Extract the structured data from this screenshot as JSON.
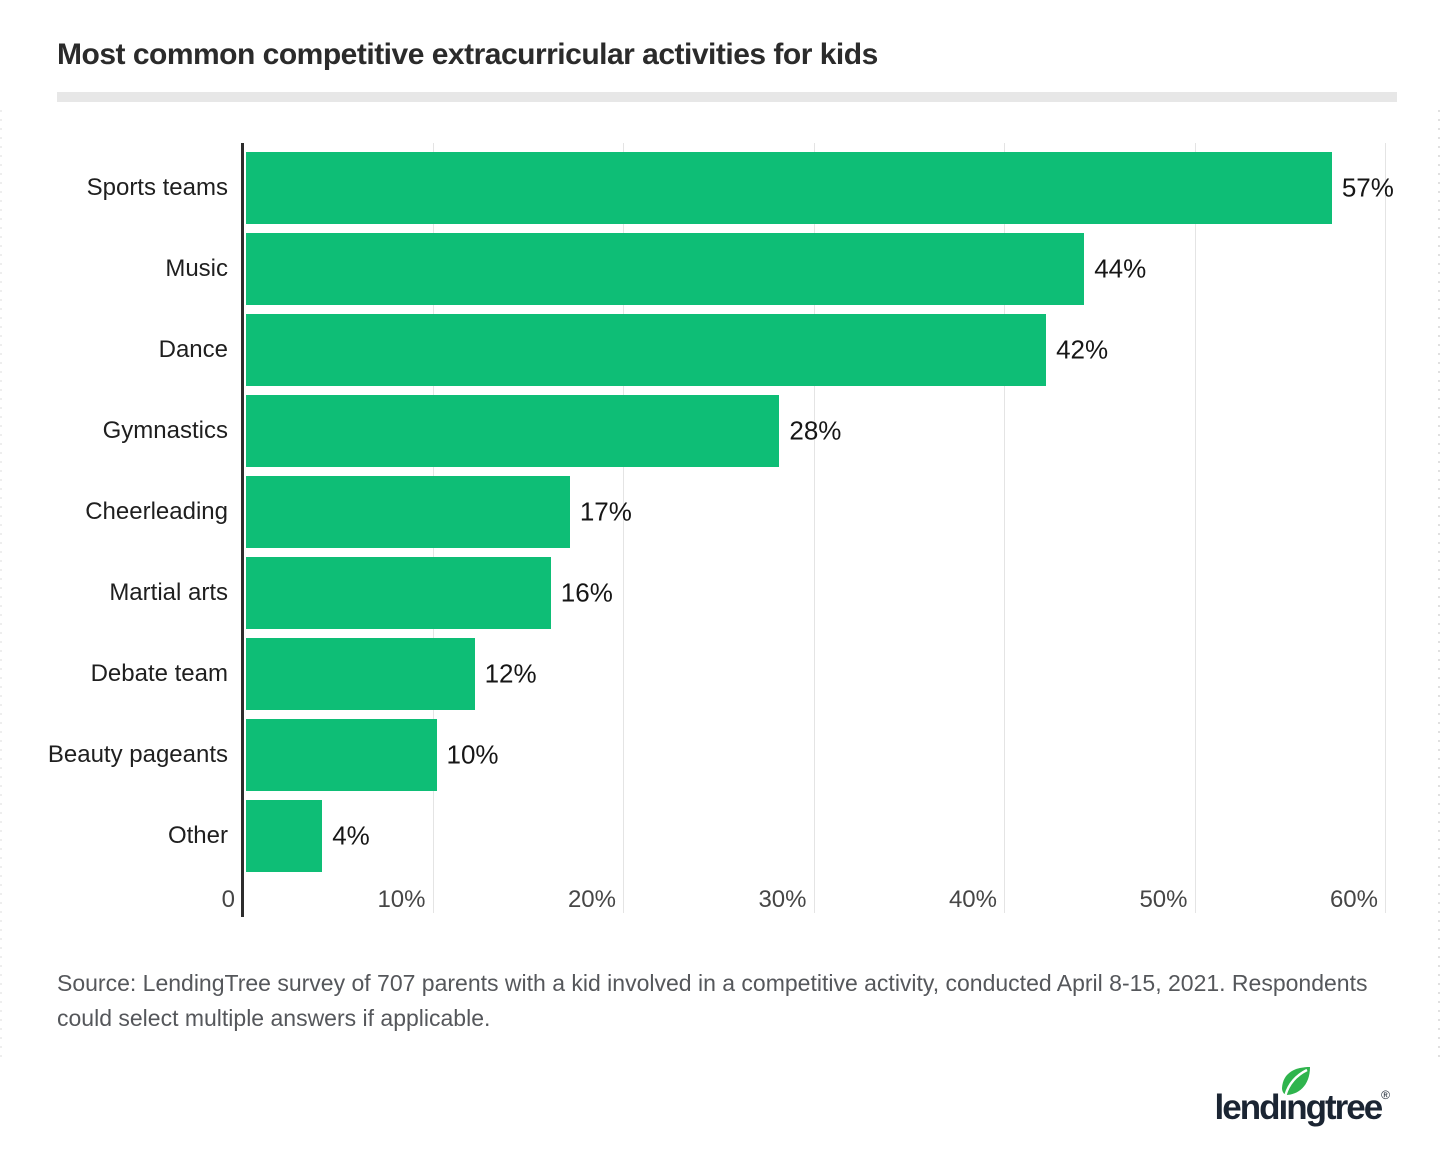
{
  "title": "Most common competitive extracurricular activities for kids",
  "source_note": "Source: LendingTree survey of 707 parents with a kid involved in a competitive activity, conducted April 8-15, 2021. Respondents could select multiple answers if applicable.",
  "logo": {
    "brand_prefix": "lend",
    "brand_dotless_i": "ı",
    "brand_suffix": "ngtree",
    "registered_mark": "®",
    "brand_color": "#1b2533",
    "leaf_color": "#2fb44d"
  },
  "colors": {
    "bar": "#0ebe76",
    "axis": "#2d2d2d",
    "gridline": "#e4e4e4",
    "divider": "#e7e7e7",
    "title_text": "#2b2b2b",
    "category_text": "#1f1f1f",
    "value_text": "#161616",
    "tick_text": "#464646",
    "source_text": "#55575b"
  },
  "chart_data": {
    "type": "bar",
    "orientation": "horizontal",
    "title": "Most common competitive extracurricular activities for kids",
    "categories": [
      "Sports teams",
      "Music",
      "Dance",
      "Gymnastics",
      "Cheerleading",
      "Martial arts",
      "Debate team",
      "Beauty pageants",
      "Other"
    ],
    "values": [
      57,
      44,
      42,
      28,
      17,
      16,
      12,
      10,
      4
    ],
    "value_labels": [
      "57%",
      "44%",
      "42%",
      "28%",
      "17%",
      "16%",
      "12%",
      "10%",
      "4%"
    ],
    "x_ticks": [
      {
        "label": "0",
        "value": 0
      },
      {
        "label": "10%",
        "value": 10
      },
      {
        "label": "20%",
        "value": 20
      },
      {
        "label": "30%",
        "value": 30
      },
      {
        "label": "40%",
        "value": 40
      },
      {
        "label": "50%",
        "value": 50
      },
      {
        "label": "60%",
        "value": 60
      }
    ],
    "xlim": [
      0,
      60
    ],
    "gridline_interval": 10,
    "grid": true,
    "legend": false,
    "bar_color": "#0ebe76",
    "xlabel": "",
    "ylabel": ""
  }
}
